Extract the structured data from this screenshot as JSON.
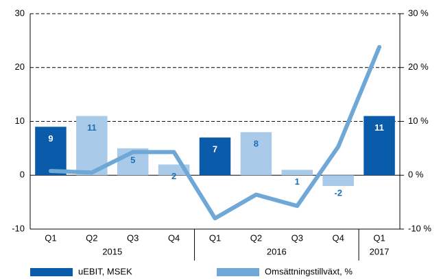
{
  "chart_data": {
    "type": "bar_line",
    "categories": [
      "Q1",
      "Q2",
      "Q3",
      "Q4",
      "Q1",
      "Q2",
      "Q3",
      "Q4",
      "Q1"
    ],
    "groups": [
      {
        "name": "2015",
        "count": 4
      },
      {
        "name": "2016",
        "count": 4
      },
      {
        "name": "2017",
        "count": 1
      }
    ],
    "series": [
      {
        "name": "uEBIT, MSEK",
        "type": "bar",
        "color": "#0a5cab",
        "colors": [
          "#0a5cab",
          "#a9cbe9",
          "#a9cbe9",
          "#a9cbe9",
          "#0a5cab",
          "#a9cbe9",
          "#a9cbe9",
          "#a9cbe9",
          "#0a5cab"
        ],
        "values": [
          9,
          11,
          5,
          2,
          7,
          8,
          1,
          -2,
          11
        ]
      },
      {
        "name": "Omsättningstillväxt, %",
        "type": "line",
        "axis": "y2",
        "color": "#6fa8d6",
        "values": [
          0.8,
          0.5,
          4.3,
          4.3,
          -8,
          -3.6,
          -5.7,
          5.3,
          23.8
        ]
      }
    ],
    "ylim": [
      -10,
      30
    ],
    "yticks": [
      -10,
      0,
      10,
      20,
      30
    ],
    "y2lim": [
      -10,
      30
    ],
    "y2ticks": [
      {
        "value": -10,
        "label": "-10 %"
      },
      {
        "value": 0,
        "label": "0 %"
      },
      {
        "value": 10,
        "label": "10 %"
      },
      {
        "value": 20,
        "label": "20 %"
      },
      {
        "value": 30,
        "label": "30 %"
      }
    ],
    "grid": true,
    "legend": "bottom"
  }
}
